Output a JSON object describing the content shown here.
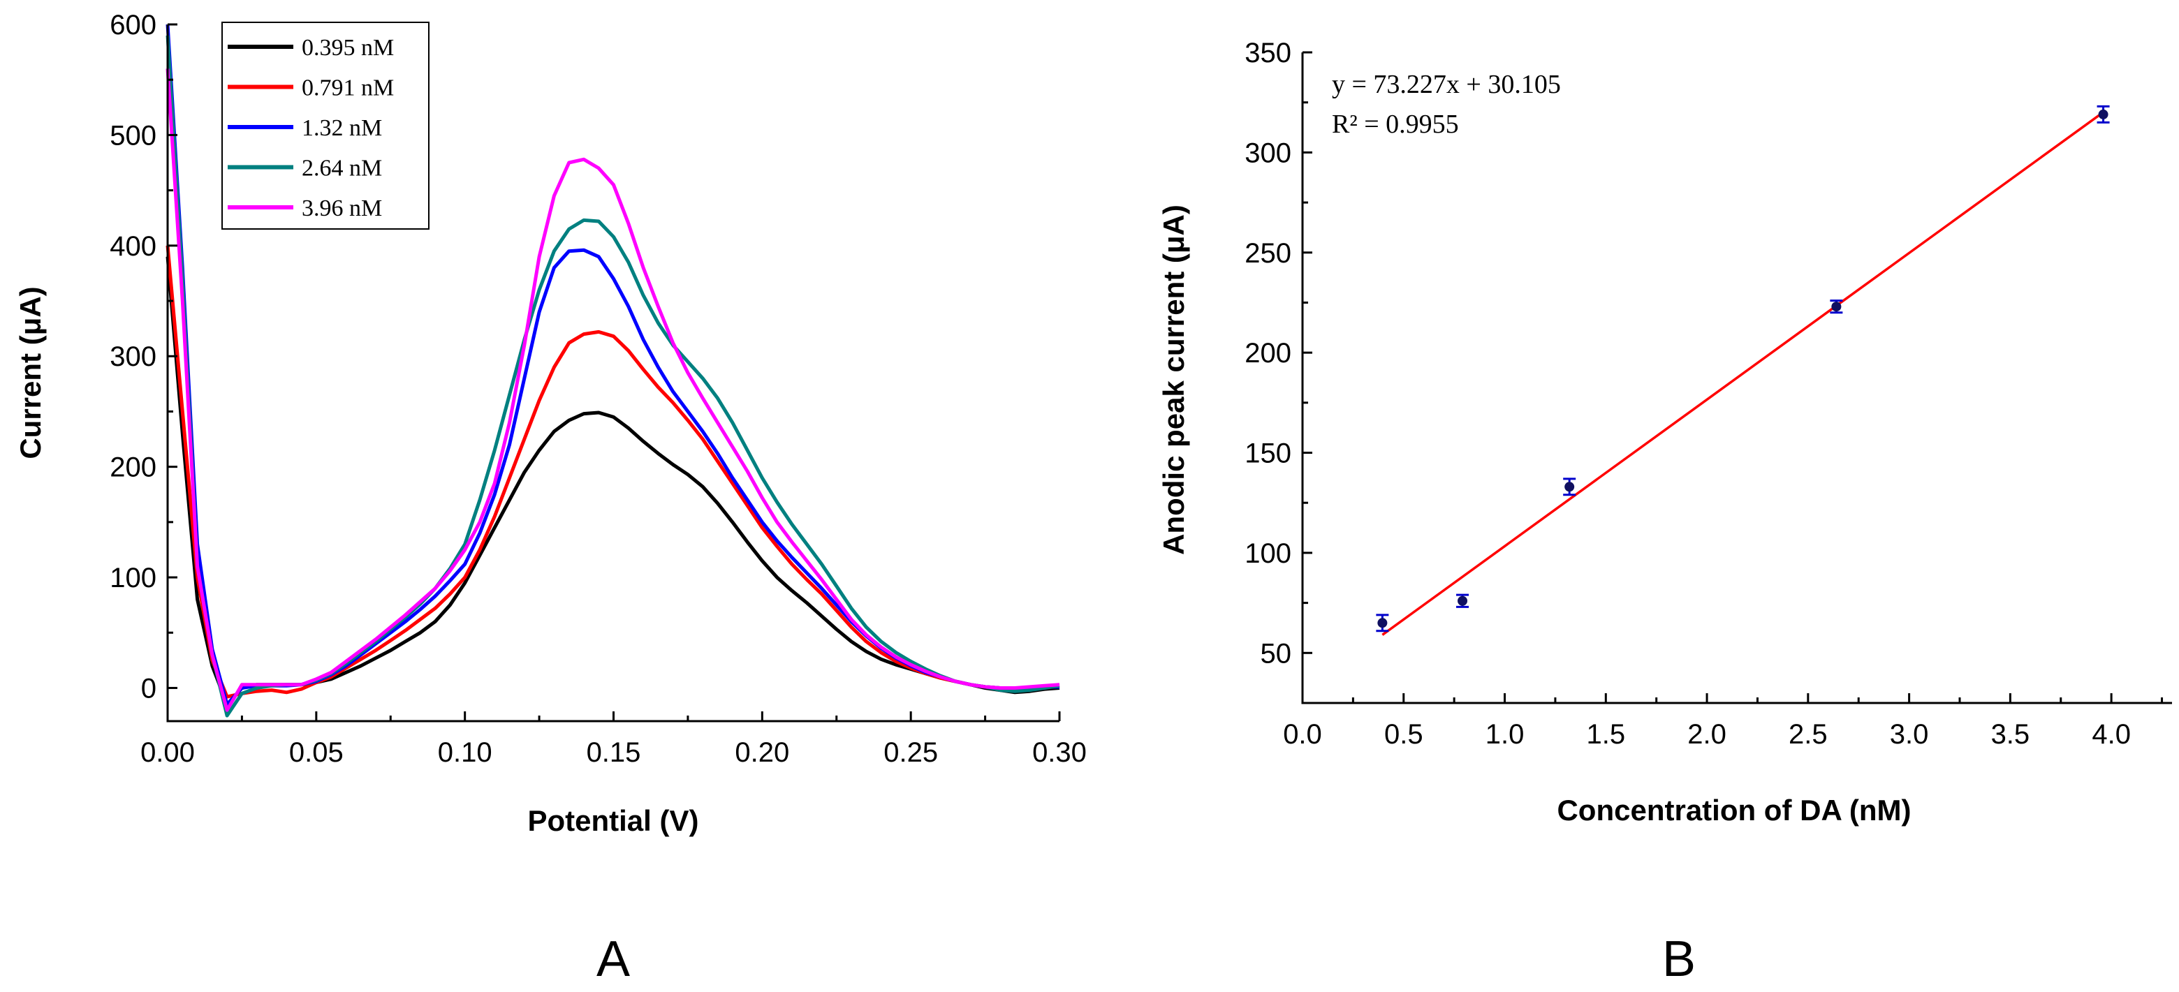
{
  "chart_data": [
    {
      "type": "line",
      "panel_label": "A",
      "xlabel": "Potential (V)",
      "ylabel": "Current (μA)",
      "xlim": [
        0,
        0.3
      ],
      "ylim": [
        -30,
        600
      ],
      "xticks": [
        0,
        0.05,
        0.1,
        0.15,
        0.2,
        0.25,
        0.3
      ],
      "xtick_labels": [
        "0.00",
        "0.05",
        "0.10",
        "0.15",
        "0.20",
        "0.25",
        "0.30"
      ],
      "yticks": [
        0,
        100,
        200,
        300,
        400,
        500,
        600
      ],
      "ytick_labels": [
        "0",
        "100",
        "200",
        "300",
        "400",
        "500",
        "600"
      ],
      "legend_position": "top-left",
      "x": [
        0,
        0.005,
        0.01,
        0.015,
        0.02,
        0.025,
        0.03,
        0.035,
        0.04,
        0.045,
        0.05,
        0.055,
        0.06,
        0.065,
        0.07,
        0.075,
        0.08,
        0.085,
        0.09,
        0.095,
        0.1,
        0.105,
        0.11,
        0.115,
        0.12,
        0.125,
        0.13,
        0.135,
        0.14,
        0.145,
        0.15,
        0.155,
        0.16,
        0.165,
        0.17,
        0.175,
        0.18,
        0.185,
        0.19,
        0.195,
        0.2,
        0.205,
        0.21,
        0.215,
        0.22,
        0.225,
        0.23,
        0.235,
        0.24,
        0.245,
        0.25,
        0.255,
        0.26,
        0.265,
        0.27,
        0.275,
        0.28,
        0.285,
        0.29,
        0.295,
        0.3
      ],
      "series": [
        {
          "name": "0.395 nM",
          "color": "#000000",
          "values": [
            390,
            230,
            80,
            20,
            -15,
            0,
            3,
            3,
            3,
            3,
            5,
            8,
            14,
            20,
            27,
            34,
            42,
            50,
            60,
            75,
            95,
            120,
            145,
            170,
            195,
            215,
            232,
            242,
            248,
            249,
            245,
            235,
            223,
            212,
            202,
            193,
            182,
            167,
            150,
            132,
            115,
            100,
            88,
            77,
            65,
            53,
            42,
            33,
            26,
            21,
            17,
            13,
            9,
            6,
            3,
            0,
            -2,
            -4,
            -3,
            -1,
            0
          ]
        },
        {
          "name": "0.791 nM",
          "color": "#ff0000",
          "values": [
            400,
            250,
            100,
            25,
            -8,
            -5,
            -3,
            -2,
            -4,
            -1,
            5,
            10,
            18,
            26,
            34,
            43,
            52,
            62,
            72,
            85,
            100,
            125,
            155,
            190,
            225,
            260,
            290,
            312,
            320,
            322,
            318,
            305,
            288,
            272,
            258,
            242,
            225,
            205,
            185,
            165,
            145,
            128,
            112,
            98,
            85,
            70,
            55,
            42,
            32,
            24,
            18,
            13,
            9,
            6,
            3,
            1,
            0,
            -1,
            0,
            1,
            2
          ]
        },
        {
          "name": "1.32 nM",
          "color": "#0000ff",
          "values": [
            600,
            380,
            130,
            35,
            -15,
            0,
            2,
            2,
            2,
            3,
            6,
            12,
            20,
            30,
            40,
            50,
            60,
            71,
            83,
            97,
            112,
            140,
            175,
            220,
            280,
            340,
            380,
            395,
            396,
            390,
            370,
            345,
            315,
            290,
            268,
            250,
            232,
            212,
            190,
            170,
            150,
            133,
            118,
            104,
            90,
            75,
            60,
            47,
            36,
            27,
            20,
            14,
            10,
            6,
            3,
            1,
            0,
            -1,
            0,
            1,
            1
          ]
        },
        {
          "name": "2.64 nM",
          "color": "#008080",
          "values": [
            590,
            370,
            110,
            30,
            -25,
            -5,
            0,
            2,
            3,
            3,
            7,
            13,
            22,
            32,
            42,
            53,
            64,
            76,
            90,
            108,
            130,
            170,
            215,
            265,
            315,
            360,
            395,
            415,
            423,
            422,
            408,
            385,
            355,
            330,
            310,
            295,
            280,
            262,
            240,
            215,
            190,
            168,
            148,
            130,
            112,
            92,
            72,
            55,
            42,
            32,
            24,
            17,
            11,
            6,
            3,
            1,
            -2,
            -3,
            -2,
            0,
            2
          ]
        },
        {
          "name": "3.96 nM",
          "color": "#ff00ff",
          "values": [
            560,
            350,
            110,
            30,
            -20,
            3,
            3,
            3,
            3,
            3,
            8,
            14,
            24,
            34,
            44,
            55,
            66,
            78,
            90,
            106,
            125,
            150,
            185,
            240,
            310,
            390,
            445,
            475,
            478,
            470,
            455,
            420,
            380,
            345,
            312,
            285,
            262,
            240,
            218,
            196,
            172,
            150,
            132,
            115,
            98,
            80,
            62,
            48,
            37,
            28,
            21,
            15,
            10,
            6,
            3,
            1,
            0,
            0,
            1,
            2,
            3
          ]
        }
      ]
    },
    {
      "type": "scatter",
      "panel_label": "B",
      "xlabel": "Concentration of DA (nM)",
      "ylabel": "Anodic peak current (μA)",
      "xlim": [
        0,
        4.3
      ],
      "ylim": [
        25,
        350
      ],
      "xticks": [
        0,
        0.5,
        1.0,
        1.5,
        2.0,
        2.5,
        3.0,
        3.5,
        4.0
      ],
      "xtick_labels": [
        "0.0",
        "0.5",
        "1.0",
        "1.5",
        "2.0",
        "2.5",
        "3.0",
        "3.5",
        "4.0"
      ],
      "yticks": [
        50,
        100,
        150,
        200,
        250,
        300,
        350
      ],
      "ytick_labels": [
        "50",
        "100",
        "150",
        "200",
        "250",
        "300",
        "350"
      ],
      "points": [
        {
          "x": 0.395,
          "y": 65,
          "err": 4
        },
        {
          "x": 0.791,
          "y": 76,
          "err": 3
        },
        {
          "x": 1.32,
          "y": 133,
          "err": 4
        },
        {
          "x": 2.64,
          "y": 223,
          "err": 3
        },
        {
          "x": 3.96,
          "y": 319,
          "err": 4
        }
      ],
      "fit": {
        "slope": 73.227,
        "intercept": 30.105,
        "x_range": [
          0.395,
          3.96
        ],
        "color": "#ff0000"
      },
      "marker_color": "#0000cc",
      "equation": "y = 73.227x + 30.105",
      "r_squared": "R² = 0.9955"
    }
  ]
}
